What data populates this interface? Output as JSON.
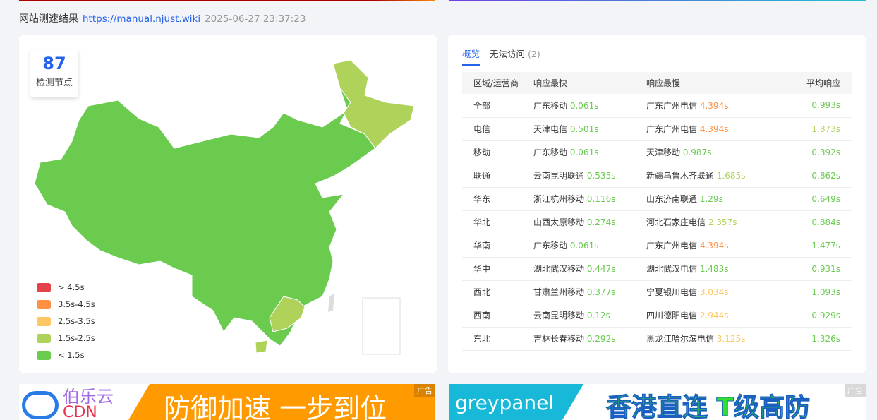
{
  "header": {
    "title": "网站测速结果",
    "url": "https://manual.njust.wiki",
    "timestamp": "2025-06-27 23:37:23"
  },
  "map": {
    "node_count": "87",
    "node_label": "检测节点",
    "legend": [
      {
        "label": "> 4.5s",
        "color": "#e5414a"
      },
      {
        "label": "3.5s-4.5s",
        "color": "#ff9145"
      },
      {
        "label": "2.5s-3.5s",
        "color": "#fdc863"
      },
      {
        "label": "1.5s-2.5s",
        "color": "#afd35a"
      },
      {
        "label": "< 1.5s",
        "color": "#6acb4f"
      }
    ]
  },
  "tabs": [
    {
      "label": "概览",
      "active": true
    },
    {
      "label": "无法访问",
      "count": "(2)"
    }
  ],
  "table": {
    "headers": [
      "区域/运营商",
      "响应最快",
      "响应最慢",
      "平均响应"
    ],
    "rows": [
      {
        "region": "全部",
        "fast": "广东移动",
        "fast_v": "0.061s",
        "slow": "广东广州电信",
        "slow_v": "4.394s",
        "avg": "0.993s"
      },
      {
        "region": "电信",
        "fast": "天津电信",
        "fast_v": "0.501s",
        "slow": "广东广州电信",
        "slow_v": "4.394s",
        "avg": "1.873s"
      },
      {
        "region": "移动",
        "fast": "广东移动",
        "fast_v": "0.061s",
        "slow": "天津移动",
        "slow_v": "0.987s",
        "avg": "0.392s"
      },
      {
        "region": "联通",
        "fast": "云南昆明联通",
        "fast_v": "0.535s",
        "slow": "新疆乌鲁木齐联通",
        "slow_v": "1.685s",
        "avg": "0.862s"
      },
      {
        "region": "华东",
        "fast": "浙江杭州移动",
        "fast_v": "0.116s",
        "slow": "山东济南联通",
        "slow_v": "1.29s",
        "avg": "0.649s"
      },
      {
        "region": "华北",
        "fast": "山西太原移动",
        "fast_v": "0.274s",
        "slow": "河北石家庄电信",
        "slow_v": "2.357s",
        "avg": "0.884s"
      },
      {
        "region": "华南",
        "fast": "广东移动",
        "fast_v": "0.061s",
        "slow": "广东广州电信",
        "slow_v": "4.394s",
        "avg": "1.477s"
      },
      {
        "region": "华中",
        "fast": "湖北武汉移动",
        "fast_v": "0.447s",
        "slow": "湖北武汉电信",
        "slow_v": "1.483s",
        "avg": "0.931s"
      },
      {
        "region": "西北",
        "fast": "甘肃兰州移动",
        "fast_v": "0.377s",
        "slow": "宁夏银川电信",
        "slow_v": "3.034s",
        "avg": "1.093s"
      },
      {
        "region": "西南",
        "fast": "云南昆明移动",
        "fast_v": "0.12s",
        "slow": "四川德阳电信",
        "slow_v": "2.944s",
        "avg": "0.929s"
      },
      {
        "region": "东北",
        "fast": "吉林长春移动",
        "fast_v": "0.292s",
        "slow": "黑龙江哈尔滨电信",
        "slow_v": "3.125s",
        "avg": "1.326s"
      }
    ]
  },
  "ads": [
    {
      "brand": "伯乐云",
      "sub": "CDN",
      "slogan": "防御加速 一步到位",
      "tag": "广告"
    },
    {
      "brand": "greypanel",
      "slogan": "香港直连 T级高防",
      "tag": "广告"
    }
  ]
}
